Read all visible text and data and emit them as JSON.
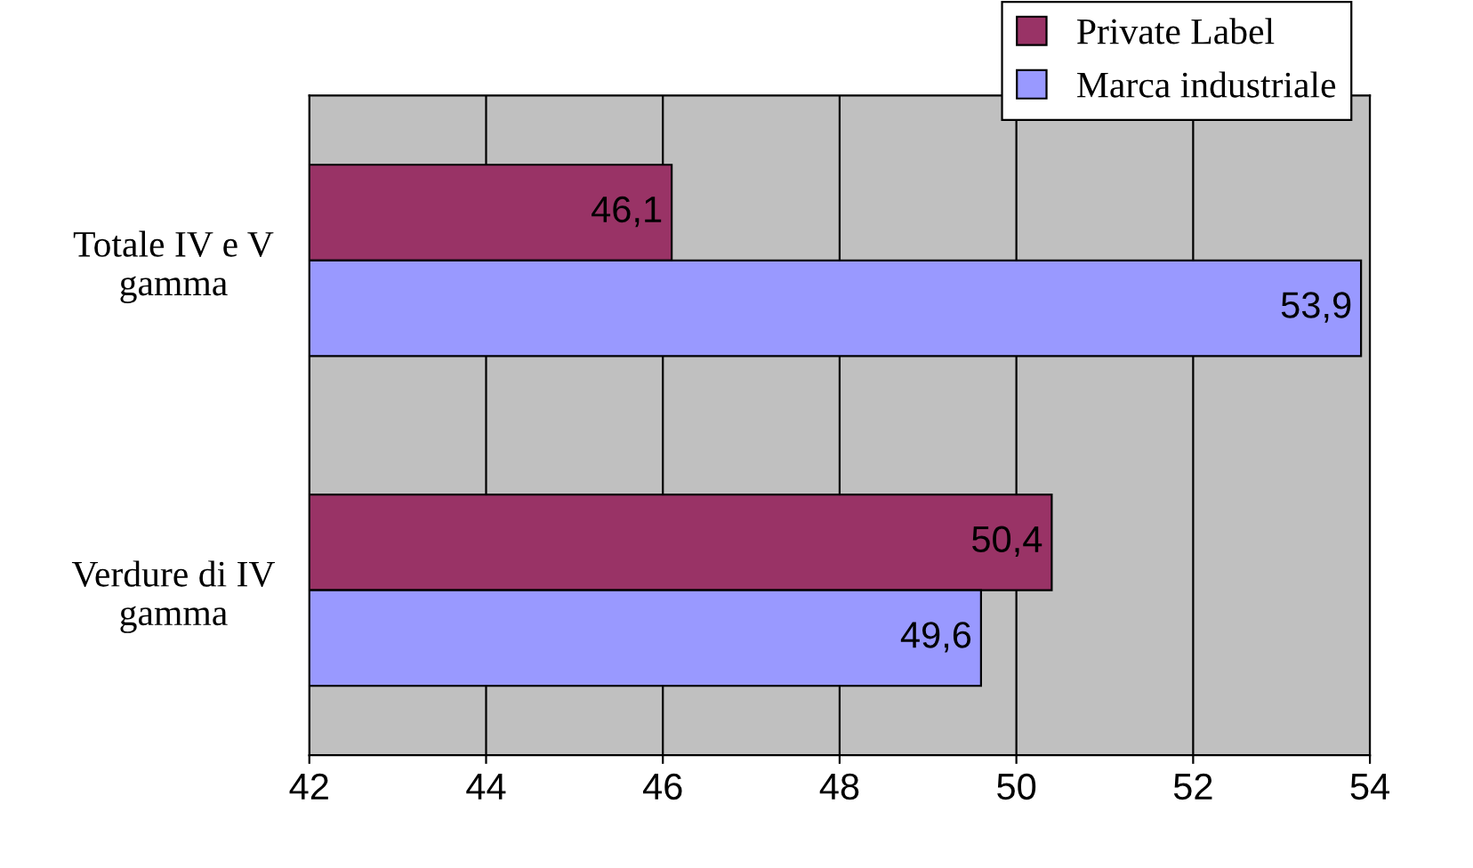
{
  "chart_data": {
    "type": "bar",
    "orientation": "horizontal",
    "categories": [
      "Totale IV e V gamma",
      "Verdure di IV gamma"
    ],
    "series": [
      {
        "name": "Private Label",
        "color": "#993366",
        "values": [
          46.1,
          50.4
        ]
      },
      {
        "name": "Marca industriale",
        "color": "#9999ff",
        "values": [
          53.9,
          49.6
        ]
      }
    ],
    "value_labels": [
      [
        "46,1",
        "50,4"
      ],
      [
        "53,9",
        "49,6"
      ]
    ],
    "xlim": [
      42,
      54
    ],
    "xticks": [
      42,
      44,
      46,
      48,
      50,
      52,
      54
    ],
    "grid": "x",
    "legend": "top right"
  }
}
